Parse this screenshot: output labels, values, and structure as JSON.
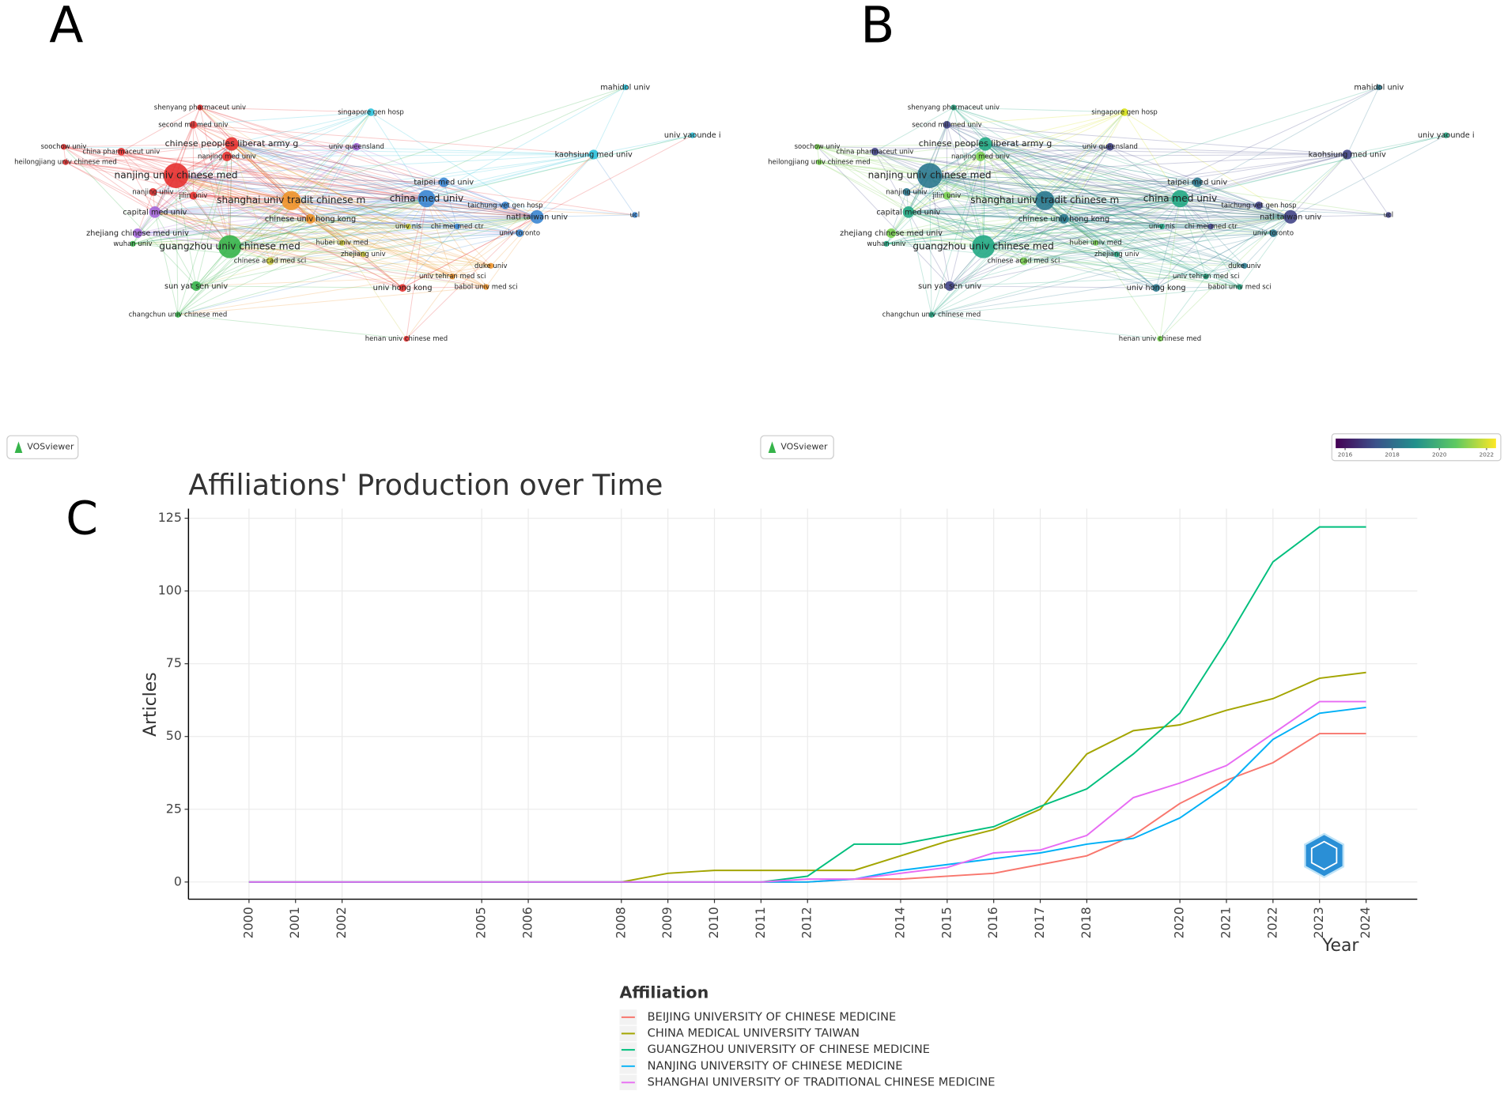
{
  "panel_a": {
    "letter": "A",
    "logo": "VOSviewer"
  },
  "panel_b": {
    "letter": "B",
    "logo": "VOSviewer",
    "colorbar": {
      "lim": [
        2015.6,
        2022.4
      ],
      "ticks": [
        2016,
        2018,
        2020,
        2022
      ]
    }
  },
  "network": {
    "labels": [
      "mahidol univ",
      "univ yaounde i",
      "shenyang pharmaceut univ",
      "singapore gen hosp",
      "second mil med univ",
      "kaohsiung med univ",
      "soochow univ",
      "china pharmaceut univ",
      "chinese peoples liberat army g",
      "univ queensland",
      "nanjing med univ",
      "heilongjiang univ chinese med",
      "nanjing univ chinese med",
      "taipei med univ",
      "nanjing univ",
      "jilin univ",
      "shanghai univ tradit chinese m",
      "china med univ",
      "taichung vet gen hosp",
      "capital med univ",
      "natl taiwan univ",
      "ucl",
      "chinese univ hong kong",
      "univ nis",
      "chi mei med ctr",
      "zhejiang chinese med univ",
      "univ toronto",
      "hubei univ med",
      "wuhan univ",
      "guangzhou univ chinese med",
      "zhejiang univ",
      "chinese acad med sci",
      "duke univ",
      "univ tehran med sci",
      "sun yat sen univ",
      "univ hong kong",
      "babol univ med sci",
      "changchun univ chinese med",
      "henan univ chinese med"
    ]
  },
  "chart_data": {
    "type": "line",
    "panel_label": "C",
    "title": "Affiliations' Production over Time",
    "x_label": "Year",
    "y_label": "Articles",
    "legend_title": "Affiliation",
    "x": [
      2000,
      2001,
      2002,
      2003,
      2004,
      2005,
      2006,
      2007,
      2008,
      2009,
      2010,
      2011,
      2012,
      2013,
      2014,
      2015,
      2016,
      2017,
      2018,
      2019,
      2020,
      2021,
      2022,
      2023,
      2024
    ],
    "xlim": [
      1998.7,
      2025.1
    ],
    "xticks": [
      2000,
      2001,
      2002,
      2005,
      2006,
      2008,
      2009,
      2010,
      2011,
      2012,
      2014,
      2015,
      2016,
      2017,
      2018,
      2020,
      2021,
      2022,
      2023,
      2024
    ],
    "ylim": [
      -5.9,
      128.3
    ],
    "yticks": [
      0,
      25,
      50,
      75,
      100,
      125
    ],
    "grid": true,
    "series": [
      {
        "name": "BEIJING UNIVERSITY OF CHINESE MEDICINE",
        "color": "#F8766D",
        "values": [
          0,
          0,
          0,
          0,
          0,
          0,
          0,
          0,
          0,
          0,
          0,
          0,
          0,
          1,
          1,
          2,
          3,
          6,
          9,
          16,
          27,
          35,
          41,
          51,
          51
        ]
      },
      {
        "name": "CHINA MEDICAL UNIVERSITY TAIWAN",
        "color": "#A3A500",
        "values": [
          0,
          0,
          0,
          0,
          0,
          0,
          0,
          0,
          0,
          3,
          4,
          4,
          4,
          4,
          9,
          14,
          18,
          25,
          44,
          52,
          54,
          59,
          63,
          70,
          72
        ]
      },
      {
        "name": "GUANGZHOU UNIVERSITY OF CHINESE MEDICINE",
        "color": "#00BF7D",
        "values": [
          0,
          0,
          0,
          0,
          0,
          0,
          0,
          0,
          0,
          0,
          0,
          0,
          2,
          13,
          13,
          16,
          19,
          26,
          32,
          44,
          58,
          83,
          110,
          122,
          122
        ]
      },
      {
        "name": "NANJING UNIVERSITY OF CHINESE MEDICINE",
        "color": "#00B0F6",
        "values": [
          0,
          0,
          0,
          0,
          0,
          0,
          0,
          0,
          0,
          0,
          0,
          0,
          0,
          1,
          4,
          6,
          8,
          10,
          13,
          15,
          22,
          33,
          49,
          58,
          60
        ]
      },
      {
        "name": "SHANGHAI UNIVERSITY OF TRADITIONAL CHINESE MEDICINE",
        "color": "#E76BF3",
        "values": [
          0,
          0,
          0,
          0,
          0,
          0,
          0,
          0,
          0,
          0,
          0,
          0,
          1,
          1,
          3,
          5,
          10,
          11,
          16,
          29,
          34,
          40,
          51,
          62,
          62
        ]
      }
    ]
  }
}
